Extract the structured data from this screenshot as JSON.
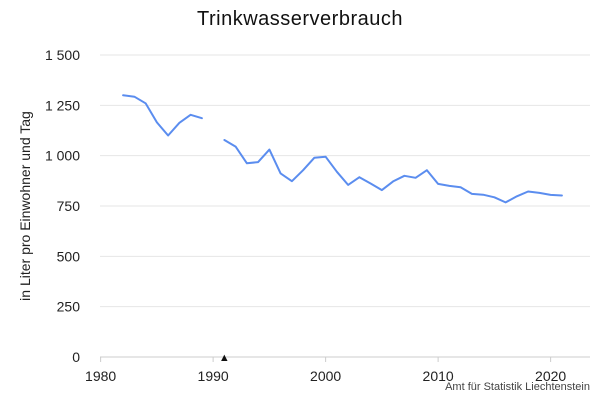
{
  "chart_data": {
    "type": "line",
    "title": "Trinkwasserverbrauch",
    "ylabel": "in Liter pro Einwohner und Tag",
    "xlabel": "",
    "xlim": [
      1979.5,
      2023.5
    ],
    "ylim": [
      0,
      1500
    ],
    "x_ticks": [
      1980,
      1990,
      2000,
      2010,
      2020
    ],
    "x_tick_labels": [
      "1980",
      "1990",
      "2000",
      "2010",
      "2020"
    ],
    "y_ticks": [
      0,
      250,
      500,
      750,
      1000,
      1250,
      1500
    ],
    "y_tick_labels": [
      "0",
      "250",
      "500",
      "750",
      "1 000",
      "1 250",
      "1 500"
    ],
    "grid": "horizontal",
    "line_color": "#5b8def",
    "marker": {
      "x": 1991,
      "symbol": "▲"
    },
    "series": [
      {
        "values": [
          [
            1982,
            1300
          ],
          [
            1983,
            1293
          ],
          [
            1984,
            1260
          ],
          [
            1985,
            1165
          ],
          [
            1986,
            1100
          ],
          [
            1987,
            1163
          ],
          [
            1988,
            1203
          ],
          [
            1989,
            1186
          ],
          [
            1990,
            null
          ],
          [
            1991,
            1078
          ],
          [
            1992,
            1045
          ],
          [
            1993,
            962
          ],
          [
            1994,
            968
          ],
          [
            1995,
            1030
          ],
          [
            1996,
            912
          ],
          [
            1997,
            873
          ],
          [
            1998,
            928
          ],
          [
            1999,
            990
          ],
          [
            2000,
            995
          ],
          [
            2001,
            920
          ],
          [
            2002,
            855
          ],
          [
            2003,
            893
          ],
          [
            2004,
            862
          ],
          [
            2005,
            829
          ],
          [
            2006,
            872
          ],
          [
            2007,
            900
          ],
          [
            2008,
            890
          ],
          [
            2009,
            928
          ],
          [
            2010,
            860
          ],
          [
            2011,
            850
          ],
          [
            2012,
            843
          ],
          [
            2013,
            810
          ],
          [
            2014,
            806
          ],
          [
            2015,
            793
          ],
          [
            2016,
            768
          ],
          [
            2017,
            798
          ],
          [
            2018,
            822
          ],
          [
            2019,
            815
          ],
          [
            2020,
            805
          ],
          [
            2021,
            802
          ]
        ]
      }
    ]
  },
  "source": "Amt für Statistik Liechtenstein"
}
